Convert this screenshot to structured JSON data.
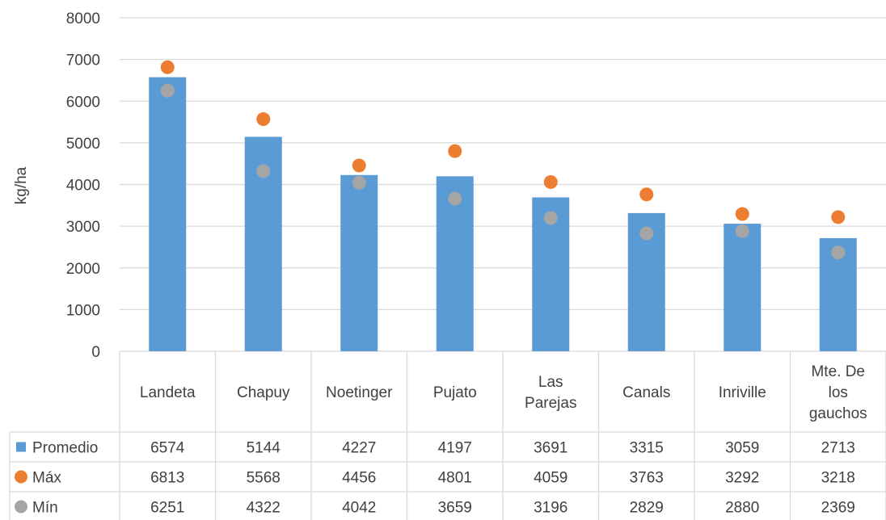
{
  "chart_data": {
    "type": "bar",
    "ylabel": "kg/ha",
    "ylim": [
      0,
      8000
    ],
    "yticks": [
      0,
      1000,
      2000,
      3000,
      4000,
      5000,
      6000,
      7000,
      8000
    ],
    "grid": true,
    "categories": [
      [
        "Landeta"
      ],
      [
        "Chapuy"
      ],
      [
        "Noetinger"
      ],
      [
        "Pujato"
      ],
      [
        "Las",
        "Parejas"
      ],
      [
        "Canals"
      ],
      [
        "Inriville"
      ],
      [
        "Mte. De",
        "los",
        "gauchos"
      ]
    ],
    "series": [
      {
        "name": "Promedio",
        "kind": "bar",
        "color": "#5b9bd5",
        "marker": "square",
        "values": [
          6574,
          5144,
          4227,
          4197,
          3691,
          3315,
          3059,
          2713
        ]
      },
      {
        "name": "Máx",
        "kind": "marker",
        "color": "#ed7d31",
        "marker": "circle",
        "values": [
          6813,
          5568,
          4456,
          4801,
          4059,
          3763,
          3292,
          3218
        ]
      },
      {
        "name": "Mín",
        "kind": "marker",
        "color": "#a5a5a5",
        "marker": "circle",
        "values": [
          6251,
          4322,
          4042,
          3659,
          3196,
          2829,
          2880,
          2369
        ]
      }
    ],
    "legend": "data-table"
  }
}
